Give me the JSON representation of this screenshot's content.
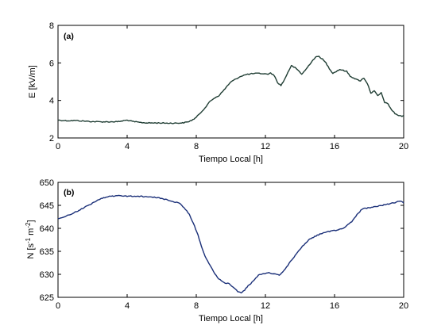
{
  "chart_data": [
    {
      "type": "line",
      "panel_label": "(a)",
      "xlabel": "Tiempo Local [h]",
      "ylabel": "E  [kV/m]",
      "xlim": [
        0,
        20
      ],
      "ylim": [
        2,
        8
      ],
      "xticks": [
        0,
        4,
        8,
        12,
        16,
        20
      ],
      "yticks": [
        2,
        4,
        6,
        8
      ],
      "grid": false,
      "line_color": "#1f3d33",
      "series": [
        {
          "x": [
            0,
            0.5,
            1,
            1.5,
            2,
            2.5,
            3,
            3.5,
            3.8,
            4,
            4.3,
            4.8,
            5.2,
            5.8,
            6.3,
            6.8,
            7.2,
            7.5,
            7.8,
            8.0,
            8.2,
            8.5,
            8.8,
            9.0,
            9.3,
            9.6,
            9.8,
            10.0,
            10.3,
            10.6,
            10.9,
            11.2,
            11.5,
            11.8,
            12.1,
            12.3,
            12.5,
            12.7,
            12.9,
            13.1,
            13.3,
            13.5,
            13.7,
            13.9,
            14.1,
            14.3,
            14.5,
            14.7,
            14.9,
            15.1,
            15.3,
            15.5,
            15.7,
            15.9,
            16.1,
            16.3,
            16.5,
            16.7,
            16.9,
            17.1,
            17.3,
            17.5,
            17.7,
            17.9,
            18.1,
            18.3,
            18.5,
            18.7,
            18.9,
            19.1,
            19.3,
            19.5,
            19.7,
            19.9,
            20.0
          ],
          "y": [
            2.95,
            2.92,
            2.93,
            2.9,
            2.87,
            2.86,
            2.86,
            2.87,
            2.92,
            2.95,
            2.88,
            2.82,
            2.8,
            2.8,
            2.79,
            2.79,
            2.8,
            2.85,
            2.97,
            3.1,
            3.3,
            3.6,
            3.95,
            4.1,
            4.25,
            4.55,
            4.78,
            4.98,
            5.15,
            5.3,
            5.38,
            5.42,
            5.44,
            5.43,
            5.4,
            5.45,
            5.35,
            4.95,
            4.8,
            5.1,
            5.5,
            5.85,
            5.75,
            5.6,
            5.4,
            5.6,
            5.85,
            6.1,
            6.3,
            6.35,
            6.2,
            6.0,
            5.7,
            5.45,
            5.55,
            5.65,
            5.6,
            5.55,
            5.3,
            5.2,
            5.1,
            5.05,
            5.2,
            4.9,
            4.4,
            4.5,
            4.25,
            4.4,
            3.9,
            3.8,
            3.5,
            3.3,
            3.2,
            3.15,
            3.2
          ]
        }
      ]
    },
    {
      "type": "line",
      "panel_label": "(b)",
      "xlabel": "Tiempo Local [h]",
      "ylabel_main": "N  [s",
      "ylabel_sup1": "-1",
      "ylabel_mid": " m",
      "ylabel_sup2": "-2",
      "ylabel_end": "]",
      "xlim": [
        0,
        20
      ],
      "ylim": [
        625,
        650
      ],
      "xticks": [
        0,
        4,
        8,
        12,
        16,
        20
      ],
      "yticks": [
        625,
        630,
        635,
        640,
        645,
        650
      ],
      "grid": false,
      "line_color": "#1a2f78",
      "series": [
        {
          "x": [
            0,
            0.3,
            0.7,
            1.0,
            1.5,
            2.0,
            2.5,
            3.0,
            3.5,
            4.0,
            4.5,
            5.0,
            5.5,
            6.0,
            6.5,
            7.0,
            7.3,
            7.6,
            7.9,
            8.1,
            8.3,
            8.5,
            8.8,
            9.0,
            9.3,
            9.6,
            9.9,
            10.2,
            10.4,
            10.6,
            10.8,
            11.0,
            11.3,
            11.6,
            11.9,
            12.2,
            12.5,
            12.8,
            13.0,
            13.3,
            13.6,
            14.0,
            14.5,
            15.0,
            15.5,
            16.0,
            16.5,
            17.0,
            17.3,
            17.6,
            18.0,
            18.2,
            18.5,
            19.0,
            19.5,
            19.8,
            20.0
          ],
          "y": [
            642.0,
            642.5,
            643.0,
            643.5,
            644.5,
            645.5,
            646.5,
            647.0,
            647.1,
            647.0,
            647.0,
            646.9,
            646.8,
            646.5,
            646.0,
            645.5,
            644.5,
            643.0,
            640.5,
            638.5,
            636.0,
            634.0,
            632.0,
            630.5,
            629.0,
            628.2,
            628.0,
            627.0,
            626.2,
            626.0,
            626.6,
            627.5,
            628.5,
            629.8,
            630.2,
            630.3,
            630.1,
            629.8,
            630.5,
            632.0,
            633.5,
            635.5,
            637.5,
            638.5,
            639.2,
            639.5,
            640.0,
            641.5,
            643.0,
            644.2,
            644.5,
            644.6,
            644.8,
            645.2,
            645.6,
            646.0,
            645.5
          ]
        }
      ]
    }
  ]
}
